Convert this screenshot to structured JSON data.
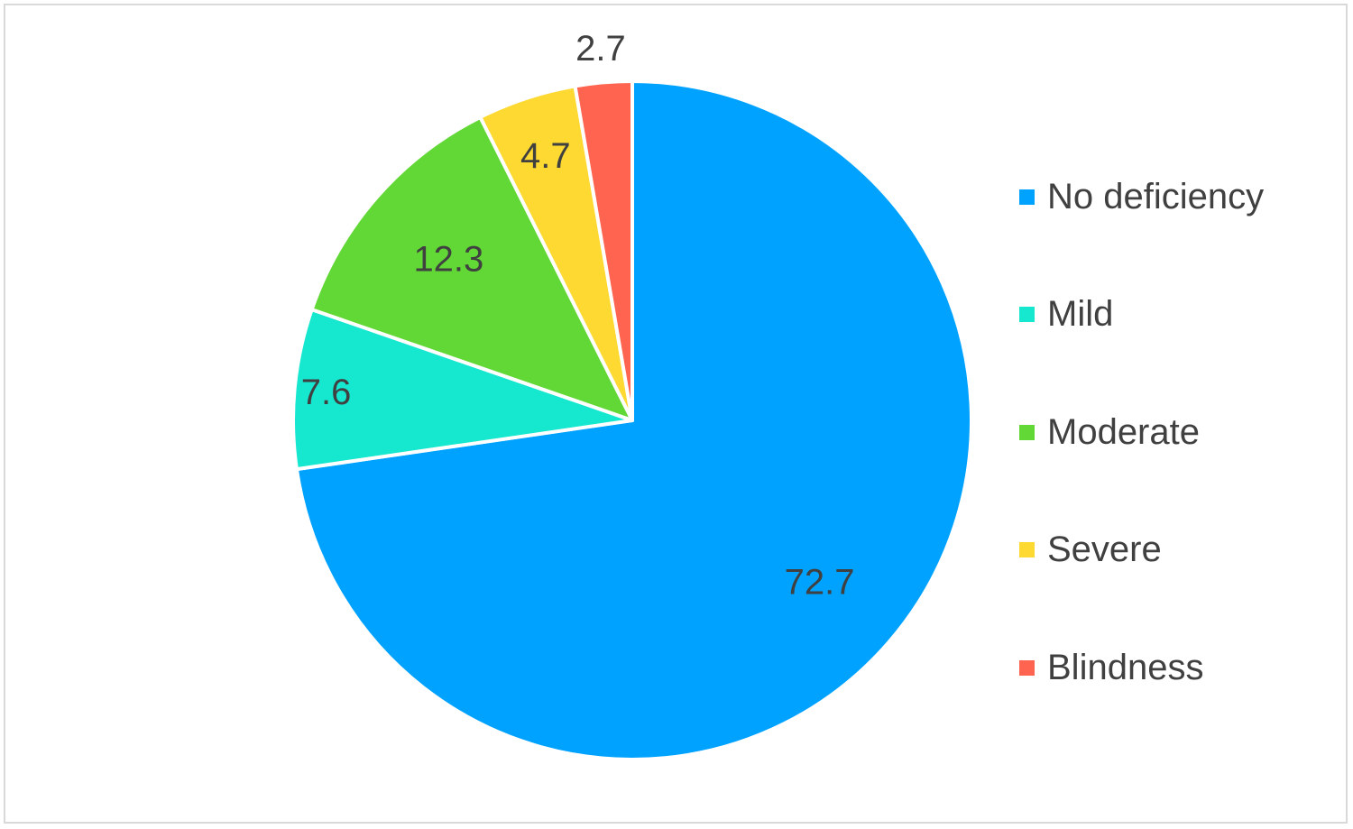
{
  "chart_data": {
    "type": "pie",
    "categories": [
      "No deficiency",
      "Mild",
      "Moderate",
      "Severe",
      "Blindness"
    ],
    "values": [
      72.7,
      7.6,
      12.3,
      4.7,
      2.7
    ],
    "labels": [
      "72.7",
      "7.6",
      "12.3",
      "4.7",
      "2.7"
    ],
    "colors": [
      "#00a2ff",
      "#16e7cf",
      "#61d836",
      "#fed931",
      "#fe644f"
    ],
    "title": "",
    "legend_position": "right",
    "start_angle": "12 o'clock",
    "direction": "clockwise"
  }
}
